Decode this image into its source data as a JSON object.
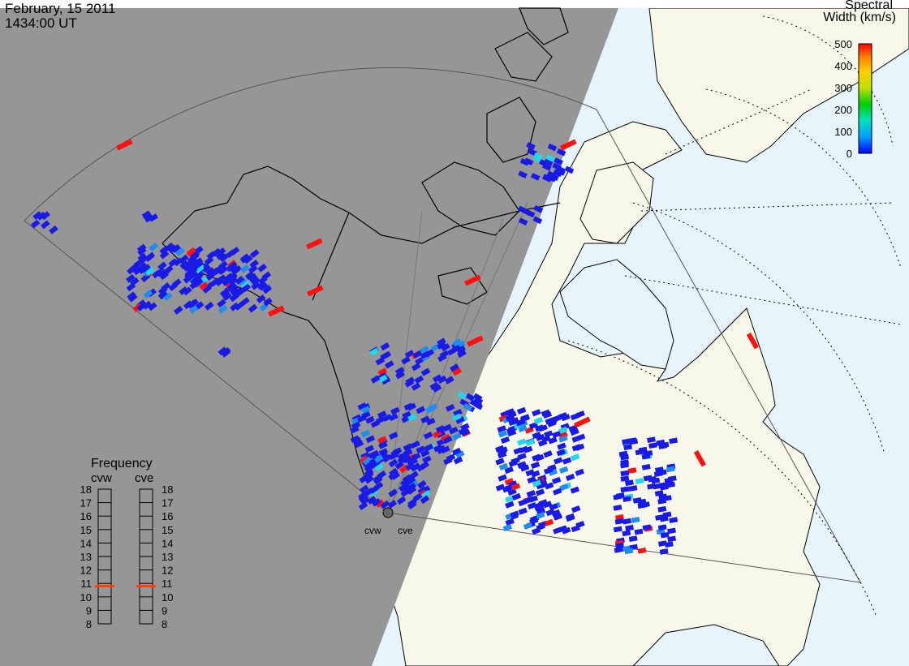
{
  "header": {
    "date": "February, 15 2011",
    "time": "1434:00 UT"
  },
  "colorbar": {
    "title_line1": "Spectral",
    "title_line2": "Width (km/s)",
    "ticks": [
      "500",
      "400",
      "300",
      "200",
      "100",
      "0"
    ],
    "colors": [
      "#0000ff",
      "#00a0ff",
      "#00e0c0",
      "#00d000",
      "#c0e000",
      "#ffd000",
      "#ff8000",
      "#ff0000"
    ]
  },
  "frequency_panel": {
    "title": "Frequency",
    "radars": [
      {
        "label": "cvw",
        "value_mhz": 10.8
      },
      {
        "label": "cve",
        "value_mhz": 10.8
      }
    ],
    "scale": [
      "18",
      "17",
      "16",
      "15",
      "14",
      "13",
      "12",
      "11",
      "10",
      "9",
      "8"
    ],
    "marker_color": "#ff4000"
  },
  "radar_sites": [
    {
      "label": "cvw"
    },
    {
      "label": "cve"
    }
  ],
  "colors": {
    "night_shade": "#969696",
    "land_day": "#f8f8ea",
    "ocean_day": "#e8f4fc",
    "echo_low": "#1a1ae6",
    "echo_mid": "#1e8cf0",
    "echo_cyan": "#22d8e8",
    "echo_high": "#ff1010"
  }
}
